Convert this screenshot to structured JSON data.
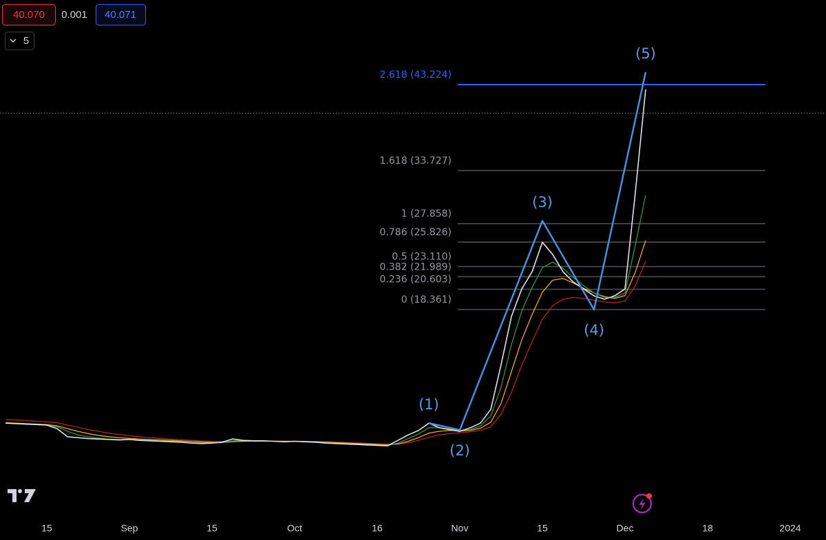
{
  "toolbar": {
    "sell": "40.070",
    "spread": "0.001",
    "buy": "40.071",
    "interval": "5"
  },
  "chart_data": {
    "type": "line",
    "categories": [
      null,
      null,
      null,
      null,
      "15",
      null,
      null,
      null,
      null,
      null,
      null,
      null,
      "Sep",
      null,
      null,
      null,
      null,
      null,
      null,
      null,
      "15",
      null,
      null,
      null,
      null,
      null,
      null,
      null,
      "Oct",
      null,
      null,
      null,
      null,
      null,
      null,
      null,
      "16",
      null,
      null,
      null,
      null,
      null,
      null,
      null,
      "Nov",
      null,
      null,
      null,
      null,
      null,
      null,
      null,
      "15",
      null,
      null,
      null,
      null,
      null,
      null,
      null,
      "Dec",
      null,
      null,
      null,
      null,
      null,
      null,
      null,
      "18",
      null,
      null,
      null,
      null,
      null,
      null,
      null,
      "2024",
      null,
      null,
      null
    ],
    "ylim": [
      -4.45,
      52.58
    ],
    "series": [
      {
        "color": "#b3262b",
        "values": [
          6.2,
          6.15,
          6.1,
          6.0,
          5.95,
          5.85,
          5.6,
          5.35,
          5.1,
          4.9,
          4.7,
          4.55,
          4.42,
          4.3,
          4.2,
          4.12,
          4.04,
          3.97,
          3.9,
          3.84,
          3.8,
          3.77,
          3.78,
          3.8,
          3.81,
          3.82,
          3.82,
          3.82,
          3.81,
          3.8,
          3.78,
          3.75,
          3.71,
          3.67,
          3.62,
          3.57,
          3.52,
          3.47,
          3.5,
          3.65,
          3.9,
          4.25,
          4.5,
          4.65,
          4.75,
          4.85,
          5.0,
          5.4,
          6.8,
          9.2,
          12.2,
          14.8,
          17.3,
          18.8,
          19.5,
          19.7,
          19.6,
          19.4,
          19.2,
          19.1,
          19.3,
          21.0,
          23.7,
          null,
          null,
          null,
          null,
          null,
          null,
          null,
          null,
          null,
          null,
          null,
          null,
          null,
          null,
          null,
          null,
          null
        ]
      },
      {
        "color": "#f0a92e",
        "values": [
          5.85,
          5.8,
          5.75,
          5.7,
          5.65,
          5.5,
          5.2,
          4.9,
          4.65,
          4.45,
          4.3,
          4.2,
          4.12,
          4.05,
          4.0,
          3.95,
          3.9,
          3.85,
          3.78,
          3.72,
          3.68,
          3.66,
          3.75,
          3.8,
          3.82,
          3.82,
          3.81,
          3.8,
          3.79,
          3.77,
          3.75,
          3.7,
          3.65,
          3.6,
          3.55,
          3.5,
          3.45,
          3.4,
          3.5,
          3.8,
          4.2,
          4.7,
          4.9,
          5.0,
          4.95,
          5.0,
          5.25,
          5.9,
          8.0,
          11.5,
          15.0,
          17.8,
          20.3,
          21.6,
          21.8,
          21.3,
          20.7,
          20.2,
          19.8,
          19.6,
          19.9,
          22.5,
          26.0,
          null,
          null,
          null,
          null,
          null,
          null,
          null,
          null,
          null,
          null,
          null,
          null,
          null,
          null,
          null,
          null,
          null
        ]
      },
      {
        "color": "#3f8f43",
        "values": [
          5.8,
          5.75,
          5.7,
          5.65,
          5.6,
          5.4,
          4.9,
          4.5,
          4.3,
          4.15,
          4.05,
          4.0,
          4.0,
          3.95,
          3.9,
          3.85,
          3.8,
          3.75,
          3.65,
          3.6,
          3.6,
          3.65,
          3.85,
          3.9,
          3.85,
          3.85,
          3.8,
          3.78,
          3.78,
          3.76,
          3.72,
          3.65,
          3.58,
          3.52,
          3.47,
          3.42,
          3.37,
          3.32,
          3.6,
          4.1,
          4.6,
          5.3,
          5.3,
          5.15,
          5.0,
          5.1,
          5.5,
          6.6,
          9.8,
          14.5,
          18.2,
          20.8,
          23.0,
          23.6,
          22.9,
          21.9,
          21.0,
          20.2,
          19.7,
          19.7,
          20.2,
          25.5,
          31.0,
          null,
          null,
          null,
          null,
          null,
          null,
          null,
          null,
          null,
          null,
          null,
          null,
          null,
          null,
          null,
          null,
          null
        ]
      },
      {
        "color": "#dde4f0",
        "values": [
          5.81,
          5.75,
          5.7,
          5.65,
          5.59,
          5.2,
          4.3,
          4.2,
          4.1,
          4.05,
          4.0,
          3.95,
          4.0,
          3.9,
          3.85,
          3.8,
          3.75,
          3.7,
          3.6,
          3.55,
          3.6,
          3.7,
          4.06,
          3.9,
          3.85,
          3.85,
          3.8,
          3.75,
          3.8,
          3.75,
          3.7,
          3.6,
          3.55,
          3.5,
          3.45,
          3.4,
          3.35,
          3.3,
          3.9,
          4.5,
          5.0,
          5.8,
          5.3,
          5.1,
          4.9,
          5.28,
          5.81,
          7.33,
          12.28,
          17.6,
          20.64,
          22.54,
          25.8,
          24.44,
          22.54,
          21.4,
          20.64,
          19.88,
          19.5,
          19.88,
          20.64,
          31.29,
          42.69,
          null,
          null,
          null,
          null,
          null,
          null,
          null,
          null,
          null,
          null,
          null,
          null,
          null,
          null,
          null,
          null,
          null
        ]
      }
    ],
    "last_price": 40.07,
    "fib_levels": [
      {
        "value": 43.224,
        "label": "2.618 (43.224)"
      },
      {
        "value": 33.727,
        "label": "1.618 (33.727)"
      },
      {
        "value": 27.858,
        "label": "1 (27.858)"
      },
      {
        "value": 25.826,
        "label": "0.786 (25.826)"
      },
      {
        "value": 23.11,
        "label": "0.5 (23.110)"
      },
      {
        "value": 21.989,
        "label": "0.382 (21.989)"
      },
      {
        "value": 20.603,
        "label": "0.236 (20.603)"
      },
      {
        "value": 18.361,
        "label": "0 (18.361)"
      }
    ],
    "wave": {
      "labels": [
        "(1)",
        "(2)",
        "(3)",
        "(4)",
        "(5)"
      ],
      "index": [
        41,
        44,
        52,
        57,
        62
      ],
      "values": [
        5.81,
        5.05,
        28.17,
        18.36,
        44.6
      ],
      "color": "#4a8fd9"
    }
  }
}
